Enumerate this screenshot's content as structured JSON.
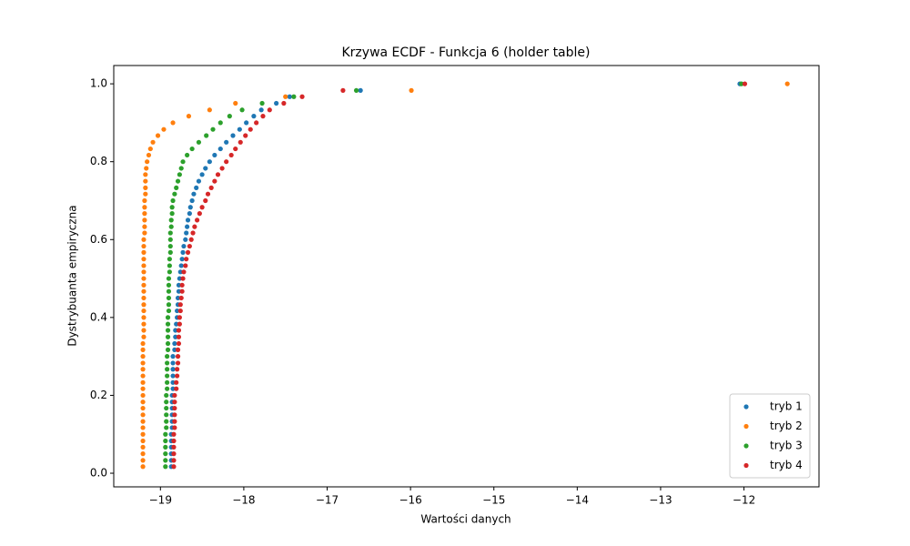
{
  "chart_data": {
    "type": "scatter",
    "title": "Krzywa ECDF - Funkcja 6 (holder table)",
    "x_label": "Wartości danych",
    "y_label": "Dystrybuanta empiryczna",
    "xlim": [
      -19.56,
      -11.1
    ],
    "ylim": [
      -0.035,
      1.047
    ],
    "xticks": [
      {
        "value": -19,
        "label": "−19"
      },
      {
        "value": -18,
        "label": "−18"
      },
      {
        "value": -17,
        "label": "−17"
      },
      {
        "value": -16,
        "label": "−16"
      },
      {
        "value": -15,
        "label": "−15"
      },
      {
        "value": -14,
        "label": "−14"
      },
      {
        "value": -13,
        "label": "−13"
      },
      {
        "value": -12,
        "label": "−12"
      }
    ],
    "yticks": [
      {
        "value": 0,
        "label": "0.0"
      },
      0.2,
      0.4,
      0.6,
      0.8,
      {
        "value": 1,
        "label": "1.0"
      }
    ],
    "legend": "lower right",
    "y": [
      0.017,
      0.033,
      0.05,
      0.067,
      0.083,
      0.1,
      0.117,
      0.133,
      0.15,
      0.167,
      0.183,
      0.2,
      0.217,
      0.233,
      0.25,
      0.267,
      0.283,
      0.3,
      0.317,
      0.333,
      0.35,
      0.367,
      0.383,
      0.4,
      0.417,
      0.433,
      0.45,
      0.467,
      0.483,
      0.5,
      0.517,
      0.533,
      0.55,
      0.567,
      0.583,
      0.6,
      0.617,
      0.633,
      0.65,
      0.667,
      0.683,
      0.7,
      0.717,
      0.733,
      0.75,
      0.767,
      0.783,
      0.8,
      0.817,
      0.833,
      0.85,
      0.867,
      0.883,
      0.9,
      0.917,
      0.933,
      0.95,
      0.967,
      0.983,
      1.0
    ],
    "series": [
      {
        "name": "tryb 1",
        "color": "#1f77b4",
        "x": [
          -18.87,
          -18.87,
          -18.87,
          -18.87,
          -18.87,
          -18.87,
          -18.86,
          -18.86,
          -18.86,
          -18.86,
          -18.86,
          -18.86,
          -18.85,
          -18.85,
          -18.85,
          -18.85,
          -18.85,
          -18.85,
          -18.83,
          -18.83,
          -18.82,
          -18.82,
          -18.81,
          -18.8,
          -18.8,
          -18.79,
          -18.79,
          -18.78,
          -18.78,
          -18.77,
          -18.76,
          -18.75,
          -18.74,
          -18.73,
          -18.72,
          -18.7,
          -18.69,
          -18.68,
          -18.67,
          -18.65,
          -18.64,
          -18.62,
          -18.6,
          -18.57,
          -18.54,
          -18.5,
          -18.46,
          -18.41,
          -18.35,
          -18.28,
          -18.21,
          -18.13,
          -18.05,
          -17.97,
          -17.88,
          -17.79,
          -17.61,
          -17.45,
          -16.6,
          -12.05
        ]
      },
      {
        "name": "tryb 2",
        "color": "#ff7f0e",
        "x": [
          -19.21,
          -19.21,
          -19.21,
          -19.21,
          -19.21,
          -19.21,
          -19.21,
          -19.21,
          -19.21,
          -19.21,
          -19.21,
          -19.21,
          -19.21,
          -19.21,
          -19.21,
          -19.21,
          -19.21,
          -19.21,
          -19.21,
          -19.21,
          -19.2,
          -19.2,
          -19.2,
          -19.2,
          -19.2,
          -19.2,
          -19.2,
          -19.2,
          -19.2,
          -19.2,
          -19.2,
          -19.2,
          -19.2,
          -19.2,
          -19.2,
          -19.2,
          -19.19,
          -19.19,
          -19.19,
          -19.19,
          -19.19,
          -19.19,
          -19.18,
          -19.18,
          -19.18,
          -19.18,
          -19.17,
          -19.16,
          -19.14,
          -19.12,
          -19.09,
          -19.03,
          -18.96,
          -18.85,
          -18.66,
          -18.41,
          -18.1,
          -17.5,
          -15.99,
          -11.48
        ]
      },
      {
        "name": "tryb 3",
        "color": "#2ca02c",
        "x": [
          -18.94,
          -18.94,
          -18.94,
          -18.94,
          -18.94,
          -18.94,
          -18.93,
          -18.93,
          -18.93,
          -18.93,
          -18.93,
          -18.93,
          -18.92,
          -18.92,
          -18.92,
          -18.92,
          -18.92,
          -18.92,
          -18.91,
          -18.91,
          -18.91,
          -18.91,
          -18.91,
          -18.91,
          -18.9,
          -18.9,
          -18.9,
          -18.9,
          -18.9,
          -18.9,
          -18.89,
          -18.89,
          -18.89,
          -18.88,
          -18.88,
          -18.88,
          -18.88,
          -18.87,
          -18.87,
          -18.86,
          -18.86,
          -18.85,
          -18.83,
          -18.81,
          -18.79,
          -18.77,
          -18.75,
          -18.73,
          -18.68,
          -18.62,
          -18.54,
          -18.45,
          -18.37,
          -18.28,
          -18.17,
          -18.02,
          -17.78,
          -17.4,
          -16.65,
          -12.03
        ]
      },
      {
        "name": "tryb 4",
        "color": "#d62728",
        "x": [
          -18.84,
          -18.84,
          -18.84,
          -18.84,
          -18.84,
          -18.84,
          -18.83,
          -18.83,
          -18.83,
          -18.83,
          -18.83,
          -18.83,
          -18.81,
          -18.81,
          -18.8,
          -18.8,
          -18.79,
          -18.79,
          -18.79,
          -18.78,
          -18.78,
          -18.78,
          -18.77,
          -18.77,
          -18.76,
          -18.76,
          -18.75,
          -18.74,
          -18.74,
          -18.73,
          -18.72,
          -18.7,
          -18.69,
          -18.67,
          -18.65,
          -18.63,
          -18.61,
          -18.59,
          -18.56,
          -18.53,
          -18.5,
          -18.46,
          -18.43,
          -18.39,
          -18.35,
          -18.31,
          -18.26,
          -18.21,
          -18.15,
          -18.1,
          -18.04,
          -17.98,
          -17.92,
          -17.85,
          -17.77,
          -17.69,
          -17.52,
          -17.3,
          -16.81,
          -11.99
        ]
      }
    ]
  }
}
